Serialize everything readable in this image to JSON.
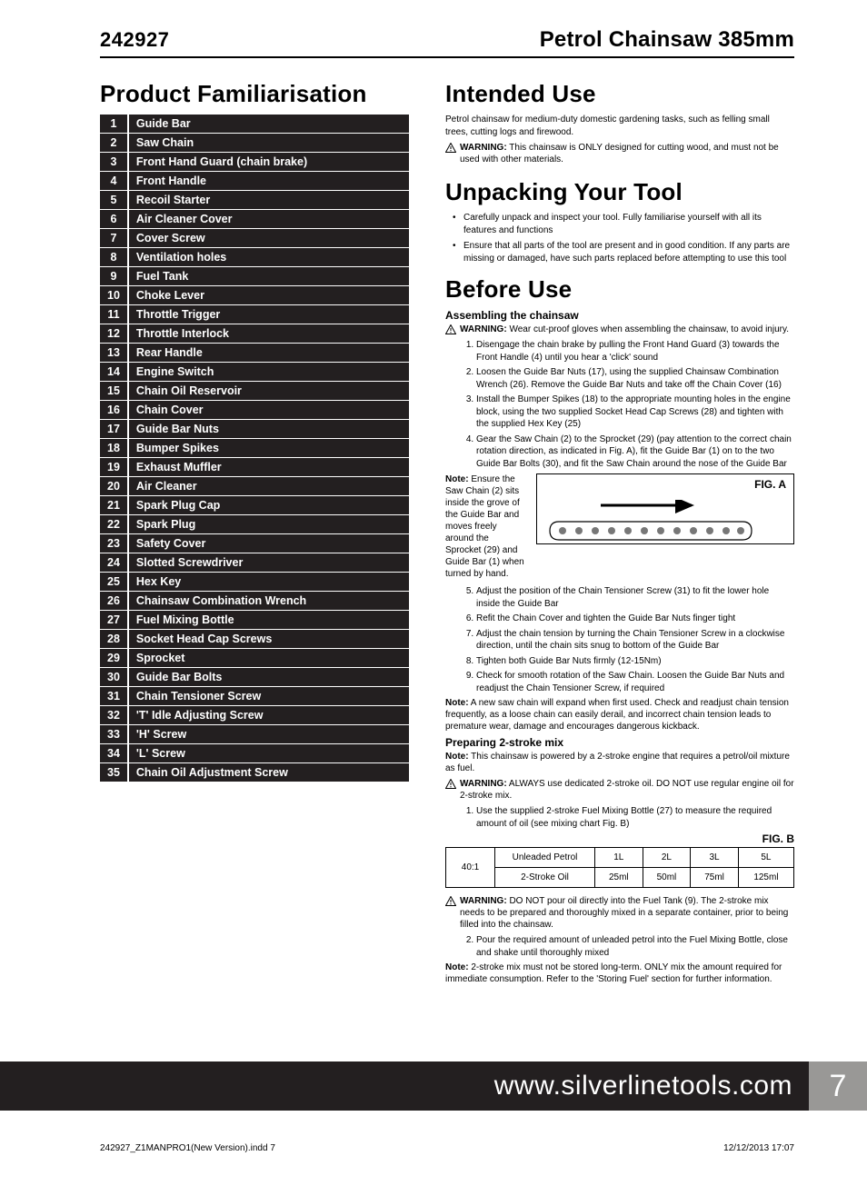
{
  "header": {
    "code": "242927",
    "title": "Petrol Chainsaw 385mm"
  },
  "left": {
    "heading": "Product Familiarisation",
    "parts": [
      {
        "n": "1",
        "name": "Guide Bar"
      },
      {
        "n": "2",
        "name": "Saw Chain"
      },
      {
        "n": "3",
        "name": "Front Hand Guard (chain brake)"
      },
      {
        "n": "4",
        "name": "Front Handle"
      },
      {
        "n": "5",
        "name": "Recoil Starter"
      },
      {
        "n": "6",
        "name": "Air Cleaner Cover"
      },
      {
        "n": "7",
        "name": "Cover Screw"
      },
      {
        "n": "8",
        "name": "Ventilation holes"
      },
      {
        "n": "9",
        "name": "Fuel Tank"
      },
      {
        "n": "10",
        "name": "Choke Lever"
      },
      {
        "n": "11",
        "name": "Throttle Trigger"
      },
      {
        "n": "12",
        "name": "Throttle Interlock"
      },
      {
        "n": "13",
        "name": "Rear Handle"
      },
      {
        "n": "14",
        "name": "Engine Switch"
      },
      {
        "n": "15",
        "name": "Chain Oil Reservoir"
      },
      {
        "n": "16",
        "name": "Chain Cover"
      },
      {
        "n": "17",
        "name": "Guide Bar Nuts"
      },
      {
        "n": "18",
        "name": "Bumper Spikes"
      },
      {
        "n": "19",
        "name": "Exhaust Muffler"
      },
      {
        "n": "20",
        "name": "Air Cleaner"
      },
      {
        "n": "21",
        "name": "Spark Plug Cap"
      },
      {
        "n": "22",
        "name": "Spark Plug"
      },
      {
        "n": "23",
        "name": "Safety Cover"
      },
      {
        "n": "24",
        "name": "Slotted Screwdriver"
      },
      {
        "n": "25",
        "name": "Hex Key"
      },
      {
        "n": "26",
        "name": "Chainsaw Combination Wrench"
      },
      {
        "n": "27",
        "name": "Fuel Mixing Bottle"
      },
      {
        "n": "28",
        "name": "Socket Head Cap Screws"
      },
      {
        "n": "29",
        "name": "Sprocket"
      },
      {
        "n": "30",
        "name": "Guide Bar Bolts"
      },
      {
        "n": "31",
        "name": "Chain Tensioner Screw"
      },
      {
        "n": "32",
        "name": "'T' Idle Adjusting Screw"
      },
      {
        "n": "33",
        "name": "'H' Screw"
      },
      {
        "n": "34",
        "name": "'L' Screw"
      },
      {
        "n": "35",
        "name": "Chain Oil Adjustment Screw"
      }
    ]
  },
  "right": {
    "intended": {
      "heading": "Intended Use",
      "desc": "Petrol chainsaw for medium-duty domestic gardening tasks, such as felling small trees, cutting logs and firewood.",
      "warn_label": "WARNING:",
      "warn_text": "This chainsaw is ONLY designed for cutting wood, and must not be used with other materials."
    },
    "unpack": {
      "heading": "Unpacking Your Tool",
      "bullets": [
        "Carefully unpack and inspect your tool. Fully familiarise yourself with all its features and functions",
        "Ensure that all parts of the tool are present and in good condition. If any parts are missing or damaged, have such parts replaced before attempting to use this tool"
      ]
    },
    "before": {
      "heading": "Before Use",
      "sub1": "Assembling the chainsaw",
      "warn1_label": "WARNING:",
      "warn1_text": "Wear cut-proof gloves when assembling the chainsaw, to avoid injury.",
      "steps1": [
        "Disengage the chain brake by pulling the Front Hand Guard (3) towards the Front Handle (4) until you hear a 'click' sound",
        "Loosen the Guide Bar Nuts (17), using the supplied Chainsaw Combination Wrench (26). Remove the Guide Bar Nuts and take off the Chain Cover (16)",
        "Install the Bumper Spikes (18) to the appropriate mounting holes in the engine block, using the two supplied Socket Head Cap Screws (28) and tighten with the supplied Hex Key (25)",
        "Gear the Saw Chain (2) to the Sprocket (29) (pay attention to the correct chain rotation direction, as indicated in Fig. A), fit the Guide Bar (1) on to the two Guide Bar Bolts (30), and fit the Saw Chain around the nose of the Guide Bar"
      ],
      "fig_note_label": "Note:",
      "fig_note": "Ensure the Saw Chain (2) sits inside the grove of the Guide Bar and moves freely around the Sprocket (29) and Guide Bar (1) when turned by hand.",
      "figA": "FIG. A",
      "steps1b": [
        "Adjust the position of the Chain Tensioner Screw (31) to fit the lower hole inside the Guide Bar",
        "Refit the Chain Cover and tighten the Guide Bar Nuts finger tight",
        "Adjust the chain tension by turning the Chain Tensioner Screw in a clockwise direction, until the chain sits snug to bottom of the Guide Bar",
        "Tighten both Guide Bar Nuts firmly (12-15Nm)",
        "Check for smooth rotation of the Saw Chain. Loosen the Guide Bar Nuts and readjust the Chain Tensioner Screw, if required"
      ],
      "note2_label": "Note:",
      "note2": "A new saw chain will expand when first used. Check and readjust chain tension frequently, as a loose chain can easily derail, and incorrect chain tension leads to premature wear, damage and encourages dangerous kickback.",
      "sub2": "Preparing 2-stroke mix",
      "note3_label": "Note:",
      "note3": "This chainsaw is powered by a 2-stroke engine that requires a petrol/oil mixture as fuel.",
      "warn2_label": "WARNING:",
      "warn2_text": "ALWAYS use dedicated 2-stroke oil. DO NOT use regular engine oil for 2-stroke mix.",
      "steps2a": [
        "Use the supplied 2-stroke Fuel Mixing Bottle (27) to measure the required amount of oil (see mixing chart Fig. B)"
      ],
      "figB": "FIG. B",
      "mix": {
        "ratio": "40:1",
        "row1": [
          "Unleaded Petrol",
          "1L",
          "2L",
          "3L",
          "5L"
        ],
        "row2": [
          "2-Stroke Oil",
          "25ml",
          "50ml",
          "75ml",
          "125ml"
        ]
      },
      "warn3_label": "WARNING:",
      "warn3_text": "DO NOT pour oil directly into the Fuel Tank (9). The 2-stroke mix needs to be prepared and thoroughly mixed in a separate container, prior to being filled into the chainsaw.",
      "steps2b": [
        "Pour the required amount of unleaded petrol into the Fuel Mixing Bottle, close and shake until thoroughly mixed"
      ],
      "note4_label": "Note:",
      "note4": "2-stroke mix must not be stored long-term. ONLY mix the amount required for immediate consumption. Refer to the 'Storing Fuel' section for further information."
    }
  },
  "footer": {
    "url": "www.silverlinetools.com",
    "page": "7"
  },
  "print": {
    "file": "242927_Z1MANPRO1(New Version).indd   7",
    "stamp": "12/12/2013   17:07"
  }
}
